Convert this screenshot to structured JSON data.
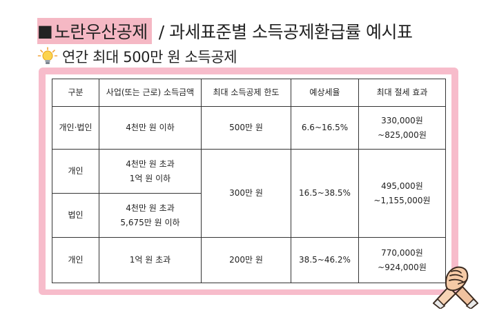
{
  "title": {
    "square": "■",
    "highlight": "노란우산공제",
    "rest": "/ 과세표준별 소득공제환급률 예시표"
  },
  "subtitle": {
    "icon": "lightbulb-icon",
    "text": "연간 최대 500만 원 소득공제"
  },
  "colors": {
    "highlight": "#f5b8c4",
    "frame": "#f7bccb",
    "border": "#333333"
  },
  "table": {
    "headers": [
      "구분",
      "사업(또는 근로) 소득금액",
      "최대 소득공제 한도",
      "예상세율",
      "최대 절세 효과"
    ],
    "rows": [
      {
        "type": "개인·법인",
        "income_1": "4천만 원 이하",
        "income_2": "",
        "limit": "500만 원",
        "rate": "6.6~16.5%",
        "effect_1": "330,000원",
        "effect_2": "~825,000원"
      },
      {
        "type": "개인",
        "income_1": "4천만 원 초과",
        "income_2": "1억 원 이하",
        "limit": "300만 원",
        "rate": "16.5~38.5%",
        "effect_1": "495,000원",
        "effect_2": "~1,155,000원"
      },
      {
        "type": "법인",
        "income_1": "4천만 원 초과",
        "income_2": "5,675만 원 이하"
      },
      {
        "type": "개인",
        "income_1": "1억 원 초과",
        "income_2": "",
        "limit": "200만 원",
        "rate": "38.5~46.2%",
        "effect_1": "770,000원",
        "effect_2": "~924,000원"
      }
    ]
  },
  "decoration": {
    "icon": "handshake-icon"
  }
}
